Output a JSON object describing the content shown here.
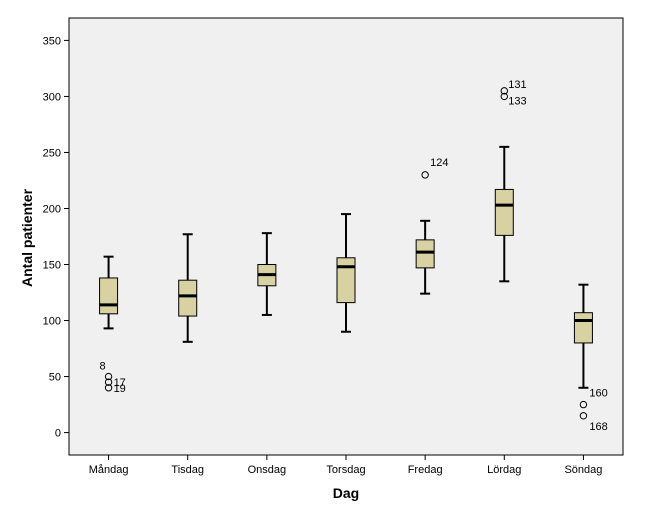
{
  "chart_data": {
    "type": "boxplot",
    "title": "",
    "xlabel": "Dag",
    "ylabel": "Antal patienter",
    "ylim": [
      -20,
      370
    ],
    "yticks": [
      0,
      50,
      100,
      150,
      200,
      250,
      300,
      350
    ],
    "grid": false,
    "legend": "none",
    "box_fill_color": "#d8d2a2",
    "plot_background_color": "#f0f0f0",
    "categories": [
      "Måndag",
      "Tisdag",
      "Onsdag",
      "Torsdag",
      "Fredag",
      "Lördag",
      "Söndag"
    ],
    "boxes": [
      {
        "category": "Måndag",
        "whisker_low": 93,
        "q1": 106,
        "median": 114,
        "q3": 138,
        "whisker_high": 157,
        "outliers": [
          {
            "value": 50,
            "label": "8"
          },
          {
            "value": 45,
            "label": "17"
          },
          {
            "value": 40,
            "label": "19"
          }
        ]
      },
      {
        "category": "Tisdag",
        "whisker_low": 81,
        "q1": 104,
        "median": 122,
        "q3": 136,
        "whisker_high": 177,
        "outliers": []
      },
      {
        "category": "Onsdag",
        "whisker_low": 105,
        "q1": 131,
        "median": 141,
        "q3": 150,
        "whisker_high": 178,
        "outliers": []
      },
      {
        "category": "Torsdag",
        "whisker_low": 90,
        "q1": 116,
        "median": 148,
        "q3": 156,
        "whisker_high": 195,
        "outliers": []
      },
      {
        "category": "Fredag",
        "whisker_low": 124,
        "q1": 147,
        "median": 161,
        "q3": 172,
        "whisker_high": 189,
        "outliers": [
          {
            "value": 230,
            "label": "124"
          }
        ]
      },
      {
        "category": "Lördag",
        "whisker_low": 135,
        "q1": 176,
        "median": 203,
        "q3": 217,
        "whisker_high": 255,
        "outliers": [
          {
            "value": 305,
            "label": "131"
          },
          {
            "value": 300,
            "label": "133"
          }
        ]
      },
      {
        "category": "Söndag",
        "whisker_low": 40,
        "q1": 80,
        "median": 100,
        "q3": 107,
        "whisker_high": 132,
        "outliers": [
          {
            "value": 25,
            "label": "160"
          },
          {
            "value": 15,
            "label": "168"
          }
        ]
      }
    ]
  }
}
